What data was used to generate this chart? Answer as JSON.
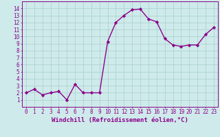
{
  "x": [
    0,
    1,
    2,
    3,
    4,
    5,
    6,
    7,
    8,
    9,
    10,
    11,
    12,
    13,
    14,
    15,
    16,
    17,
    18,
    19,
    20,
    21,
    22,
    23
  ],
  "y": [
    2.0,
    2.5,
    1.7,
    2.0,
    2.2,
    1.0,
    3.2,
    2.0,
    2.0,
    2.0,
    9.3,
    12.0,
    13.0,
    13.8,
    13.9,
    12.5,
    12.1,
    9.7,
    8.8,
    8.6,
    8.8,
    8.8,
    10.3,
    11.3
  ],
  "line_color": "#8b008b",
  "marker": "D",
  "markersize": 2.2,
  "linewidth": 1.0,
  "bg_color": "#ceeaea",
  "grid_color": "#aacece",
  "xlabel": "Windchill (Refroidissement éolien,°C)",
  "xlim": [
    -0.5,
    23.5
  ],
  "ylim": [
    0,
    15
  ],
  "xticks": [
    0,
    1,
    2,
    3,
    4,
    5,
    6,
    7,
    8,
    9,
    10,
    11,
    12,
    13,
    14,
    15,
    16,
    17,
    18,
    19,
    20,
    21,
    22,
    23
  ],
  "yticks": [
    1,
    2,
    3,
    4,
    5,
    6,
    7,
    8,
    9,
    10,
    11,
    12,
    13,
    14
  ],
  "xlabel_fontsize": 6.5,
  "tick_fontsize": 5.5
}
